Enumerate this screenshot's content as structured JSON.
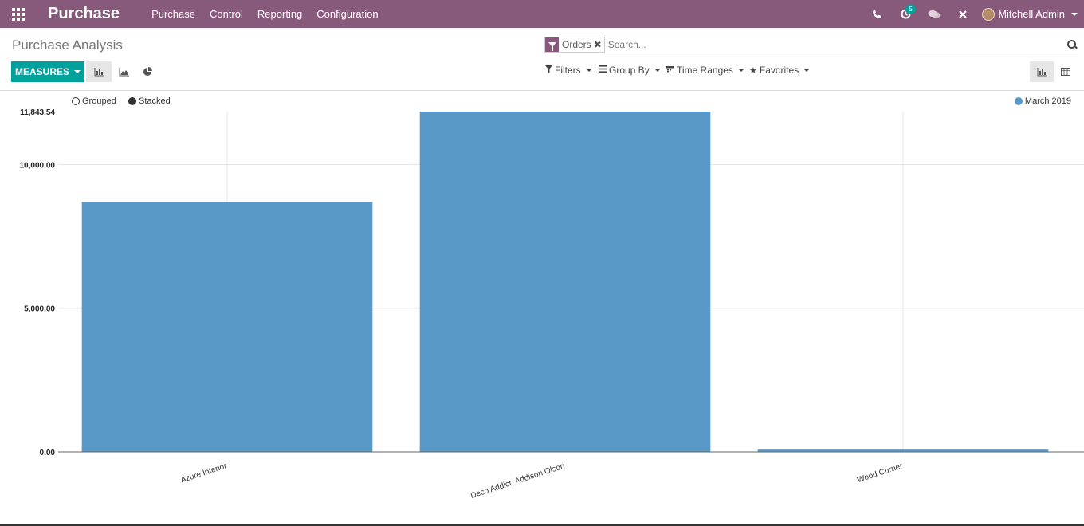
{
  "navbar": {
    "brand": "Purchase",
    "menu": [
      "Purchase",
      "Control",
      "Reporting",
      "Configuration"
    ],
    "activity_count": "5",
    "user_name": "Mitchell Admin"
  },
  "control_panel": {
    "breadcrumb": "Purchase Analysis",
    "facet_value": "Orders",
    "search_placeholder": "Search...",
    "measures_label": "MEASURES",
    "filters_label": "Filters",
    "groupby_label": "Group By",
    "timeranges_label": "Time Ranges",
    "favorites_label": "Favorites"
  },
  "chart_options": {
    "grouped_label": "Grouped",
    "stacked_label": "Stacked"
  },
  "chart_data": {
    "type": "bar",
    "categories": [
      "Azure Interior",
      "Deco Addict, Addison Olson",
      "Wood Corner"
    ],
    "series": [
      {
        "name": "March 2019",
        "values": [
          8700,
          11843.54,
          80
        ],
        "color": "#5899c7"
      }
    ],
    "ylim": [
      0,
      11843.54
    ],
    "yticks": [
      "0.00",
      "5,000.00",
      "10,000.00",
      "11,843.54"
    ],
    "ytick_values": [
      0,
      5000,
      10000,
      11843.54
    ],
    "legend": "top-right",
    "grid": true
  }
}
